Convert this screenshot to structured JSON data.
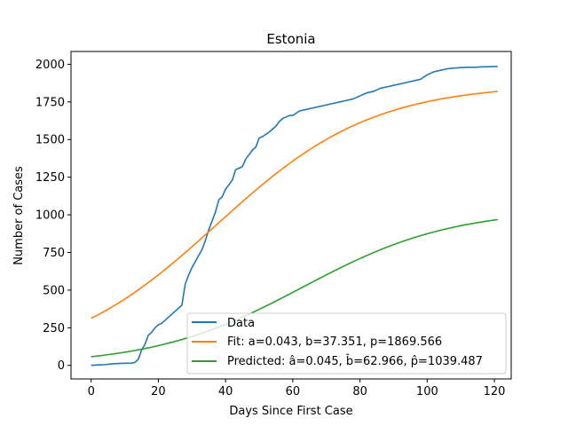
{
  "chart_data": {
    "type": "line",
    "title": "Estonia",
    "xlabel": "Days Since First Case",
    "ylabel": "Number of Cases",
    "xlim": [
      -6,
      125
    ],
    "ylim": [
      -90,
      2085
    ],
    "xticks": [
      0,
      20,
      40,
      60,
      80,
      100,
      120
    ],
    "yticks": [
      0,
      250,
      500,
      750,
      1000,
      1250,
      1500,
      1750,
      2000
    ],
    "legend_position": "lower right",
    "series": [
      {
        "name": "Data",
        "color": "#1f77b4",
        "x": [
          0,
          2,
          4,
          6,
          8,
          10,
          12,
          13,
          14,
          15,
          16,
          17,
          18,
          19,
          20,
          21,
          22,
          23,
          24,
          25,
          26,
          27,
          28,
          29,
          30,
          31,
          32,
          33,
          34,
          35,
          36,
          37,
          38,
          39,
          40,
          41,
          42,
          43,
          44,
          45,
          46,
          47,
          48,
          49,
          50,
          51,
          52,
          53,
          54,
          55,
          56,
          57,
          58,
          59,
          60,
          62,
          64,
          66,
          68,
          70,
          72,
          74,
          76,
          78,
          80,
          82,
          84,
          86,
          88,
          90,
          92,
          94,
          96,
          98,
          100,
          102,
          104,
          106,
          108,
          110,
          112,
          114,
          116,
          118,
          120,
          121
        ],
        "y": [
          0,
          3,
          5,
          10,
          13,
          14,
          15,
          20,
          40,
          100,
          140,
          200,
          220,
          250,
          270,
          280,
          300,
          320,
          340,
          360,
          380,
          400,
          540,
          600,
          650,
          690,
          730,
          770,
          830,
          900,
          960,
          1020,
          1100,
          1120,
          1170,
          1200,
          1230,
          1300,
          1310,
          1320,
          1370,
          1400,
          1430,
          1450,
          1510,
          1520,
          1535,
          1550,
          1570,
          1590,
          1620,
          1640,
          1650,
          1660,
          1660,
          1690,
          1700,
          1710,
          1720,
          1730,
          1740,
          1750,
          1760,
          1770,
          1790,
          1810,
          1820,
          1840,
          1850,
          1860,
          1870,
          1880,
          1890,
          1900,
          1930,
          1950,
          1960,
          1970,
          1975,
          1978,
          1980,
          1980,
          1982,
          1984,
          1985,
          1985
        ]
      },
      {
        "name": "Fit: a=0.043, b=37.351, p=1869.566",
        "color": "#ff7f0e",
        "model": "logistic",
        "a": 0.043,
        "b": 37.351,
        "p": 1869.566,
        "x_range": [
          0,
          121
        ]
      },
      {
        "name": "Predicted: â=0.045, b̂=62.966, p̂=1039.487",
        "color": "#2ca02c",
        "model": "logistic",
        "a": 0.045,
        "b": 62.966,
        "p": 1039.487,
        "x_range": [
          0,
          121
        ]
      }
    ]
  }
}
